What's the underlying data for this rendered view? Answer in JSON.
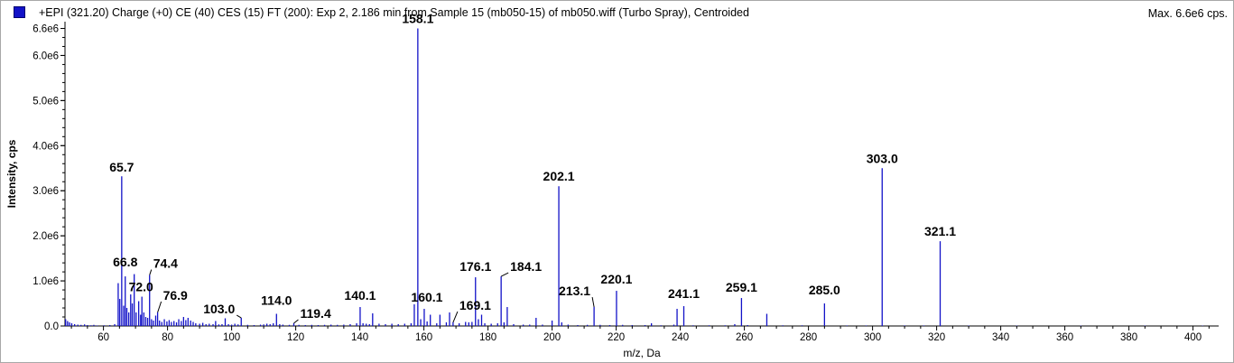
{
  "header": {
    "title": "+EPI (321.20) Charge (+0) CE (40) CES (15) FT (200): Exp 2, 2.186 min from Sample 15 (mb050-15) of mb050.wiff (Turbo Spray), Centroided",
    "max": "Max. 6.6e6 cps.",
    "series_color": "#1212c8"
  },
  "chart_data": {
    "type": "bar",
    "xlabel": "m/z, Da",
    "ylabel": "Intensity, cps",
    "xlim": [
      48,
      408
    ],
    "ylim": [
      0,
      6750000.0
    ],
    "x_ticks": [
      60,
      80,
      100,
      120,
      140,
      160,
      180,
      200,
      220,
      240,
      260,
      280,
      300,
      320,
      340,
      360,
      380,
      400
    ],
    "y_ticks": [
      {
        "value": 0,
        "label": "0.0"
      },
      {
        "value": 1000000,
        "label": "1.0e6"
      },
      {
        "value": 2000000,
        "label": "2.0e6"
      },
      {
        "value": 3000000,
        "label": "3.0e6"
      },
      {
        "value": 4000000,
        "label": "4.0e6"
      },
      {
        "value": 5000000,
        "label": "5.0e6"
      },
      {
        "value": 6000000,
        "label": "6.0e6"
      },
      {
        "value": 6600000,
        "label": "6.6e6"
      }
    ],
    "color": "#1212c8",
    "peaks": [
      {
        "x": 48.2,
        "y": 150000
      },
      {
        "x": 48.8,
        "y": 110000
      },
      {
        "x": 49.4,
        "y": 80000
      },
      {
        "x": 50.1,
        "y": 60000
      },
      {
        "x": 51.0,
        "y": 40000
      },
      {
        "x": 52.0,
        "y": 30000
      },
      {
        "x": 53.0,
        "y": 25000
      },
      {
        "x": 54.1,
        "y": 35000
      },
      {
        "x": 55.0,
        "y": 20000
      },
      {
        "x": 56.1,
        "y": 15000
      },
      {
        "x": 57.0,
        "y": 25000
      },
      {
        "x": 58.0,
        "y": 12000
      },
      {
        "x": 60.2,
        "y": 15000
      },
      {
        "x": 62.0,
        "y": 20000
      },
      {
        "x": 63.5,
        "y": 40000
      },
      {
        "x": 64.6,
        "y": 950000
      },
      {
        "x": 65.1,
        "y": 600000
      },
      {
        "x": 65.7,
        "y": 3320000
      },
      {
        "x": 66.3,
        "y": 450000
      },
      {
        "x": 66.8,
        "y": 1100000
      },
      {
        "x": 67.3,
        "y": 400000
      },
      {
        "x": 67.9,
        "y": 300000
      },
      {
        "x": 68.5,
        "y": 700000
      },
      {
        "x": 69.0,
        "y": 500000
      },
      {
        "x": 69.6,
        "y": 1150000
      },
      {
        "x": 70.2,
        "y": 300000
      },
      {
        "x": 71.0,
        "y": 550000
      },
      {
        "x": 71.6,
        "y": 250000
      },
      {
        "x": 72.0,
        "y": 650000
      },
      {
        "x": 72.6,
        "y": 300000
      },
      {
        "x": 73.2,
        "y": 200000
      },
      {
        "x": 73.8,
        "y": 180000
      },
      {
        "x": 74.4,
        "y": 1130000
      },
      {
        "x": 75.0,
        "y": 150000
      },
      {
        "x": 75.6,
        "y": 120000
      },
      {
        "x": 76.3,
        "y": 230000
      },
      {
        "x": 76.9,
        "y": 300000
      },
      {
        "x": 77.5,
        "y": 120000
      },
      {
        "x": 78.2,
        "y": 90000
      },
      {
        "x": 79.0,
        "y": 150000
      },
      {
        "x": 79.8,
        "y": 100000
      },
      {
        "x": 80.5,
        "y": 130000
      },
      {
        "x": 81.2,
        "y": 90000
      },
      {
        "x": 82.0,
        "y": 110000
      },
      {
        "x": 82.8,
        "y": 80000
      },
      {
        "x": 83.5,
        "y": 150000
      },
      {
        "x": 84.3,
        "y": 110000
      },
      {
        "x": 85.0,
        "y": 200000
      },
      {
        "x": 85.7,
        "y": 130000
      },
      {
        "x": 86.4,
        "y": 180000
      },
      {
        "x": 87.2,
        "y": 120000
      },
      {
        "x": 88.0,
        "y": 90000
      },
      {
        "x": 88.8,
        "y": 60000
      },
      {
        "x": 90.0,
        "y": 50000
      },
      {
        "x": 91.0,
        "y": 70000
      },
      {
        "x": 92.0,
        "y": 40000
      },
      {
        "x": 93.0,
        "y": 50000
      },
      {
        "x": 94.2,
        "y": 40000
      },
      {
        "x": 95.0,
        "y": 110000
      },
      {
        "x": 96.0,
        "y": 35000
      },
      {
        "x": 97.0,
        "y": 40000
      },
      {
        "x": 98.0,
        "y": 170000
      },
      {
        "x": 99.0,
        "y": 40000
      },
      {
        "x": 100.0,
        "y": 30000
      },
      {
        "x": 101.0,
        "y": 50000
      },
      {
        "x": 102.0,
        "y": 35000
      },
      {
        "x": 103.0,
        "y": 180000
      },
      {
        "x": 105.0,
        "y": 25000
      },
      {
        "x": 107.0,
        "y": 20000
      },
      {
        "x": 109.0,
        "y": 30000
      },
      {
        "x": 110.0,
        "y": 35000
      },
      {
        "x": 111.0,
        "y": 50000
      },
      {
        "x": 112.0,
        "y": 40000
      },
      {
        "x": 113.0,
        "y": 60000
      },
      {
        "x": 114.0,
        "y": 270000
      },
      {
        "x": 115.0,
        "y": 40000
      },
      {
        "x": 116.0,
        "y": 30000
      },
      {
        "x": 118.0,
        "y": 25000
      },
      {
        "x": 119.4,
        "y": 60000
      },
      {
        "x": 121.0,
        "y": 25000
      },
      {
        "x": 123.0,
        "y": 20000
      },
      {
        "x": 125.0,
        "y": 25000
      },
      {
        "x": 127.0,
        "y": 20000
      },
      {
        "x": 129.0,
        "y": 25000
      },
      {
        "x": 131.0,
        "y": 30000
      },
      {
        "x": 133.0,
        "y": 25000
      },
      {
        "x": 135.0,
        "y": 30000
      },
      {
        "x": 137.0,
        "y": 40000
      },
      {
        "x": 139.0,
        "y": 60000
      },
      {
        "x": 140.1,
        "y": 420000
      },
      {
        "x": 141.0,
        "y": 60000
      },
      {
        "x": 142.0,
        "y": 50000
      },
      {
        "x": 143.0,
        "y": 40000
      },
      {
        "x": 144.0,
        "y": 280000
      },
      {
        "x": 146.0,
        "y": 50000
      },
      {
        "x": 148.0,
        "y": 40000
      },
      {
        "x": 150.0,
        "y": 50000
      },
      {
        "x": 152.0,
        "y": 40000
      },
      {
        "x": 154.0,
        "y": 50000
      },
      {
        "x": 156.0,
        "y": 60000
      },
      {
        "x": 157.0,
        "y": 480000
      },
      {
        "x": 158.1,
        "y": 6600000
      },
      {
        "x": 159.0,
        "y": 150000
      },
      {
        "x": 160.1,
        "y": 380000
      },
      {
        "x": 161.0,
        "y": 100000
      },
      {
        "x": 162.0,
        "y": 250000
      },
      {
        "x": 164.0,
        "y": 60000
      },
      {
        "x": 165.0,
        "y": 250000
      },
      {
        "x": 167.0,
        "y": 80000
      },
      {
        "x": 168.0,
        "y": 300000
      },
      {
        "x": 169.1,
        "y": 80000
      },
      {
        "x": 171.0,
        "y": 60000
      },
      {
        "x": 173.0,
        "y": 90000
      },
      {
        "x": 174.0,
        "y": 80000
      },
      {
        "x": 175.0,
        "y": 90000
      },
      {
        "x": 176.1,
        "y": 1080000
      },
      {
        "x": 177.0,
        "y": 150000
      },
      {
        "x": 178.0,
        "y": 250000
      },
      {
        "x": 179.0,
        "y": 60000
      },
      {
        "x": 181.0,
        "y": 50000
      },
      {
        "x": 183.0,
        "y": 60000
      },
      {
        "x": 184.1,
        "y": 1100000
      },
      {
        "x": 185.0,
        "y": 80000
      },
      {
        "x": 186.0,
        "y": 420000
      },
      {
        "x": 188.0,
        "y": 40000
      },
      {
        "x": 191.0,
        "y": 30000
      },
      {
        "x": 193.0,
        "y": 30000
      },
      {
        "x": 195.0,
        "y": 180000
      },
      {
        "x": 197.0,
        "y": 30000
      },
      {
        "x": 200.0,
        "y": 120000
      },
      {
        "x": 202.1,
        "y": 3100000
      },
      {
        "x": 203.0,
        "y": 80000
      },
      {
        "x": 205.0,
        "y": 30000
      },
      {
        "x": 208.0,
        "y": 20000
      },
      {
        "x": 211.0,
        "y": 25000
      },
      {
        "x": 213.1,
        "y": 420000
      },
      {
        "x": 215.0,
        "y": 25000
      },
      {
        "x": 218.0,
        "y": 20000
      },
      {
        "x": 220.1,
        "y": 780000
      },
      {
        "x": 222.0,
        "y": 25000
      },
      {
        "x": 225.0,
        "y": 20000
      },
      {
        "x": 229.0,
        "y": 20000
      },
      {
        "x": 231.0,
        "y": 60000
      },
      {
        "x": 234.0,
        "y": 15000
      },
      {
        "x": 238.0,
        "y": 30000
      },
      {
        "x": 239.0,
        "y": 380000
      },
      {
        "x": 241.1,
        "y": 440000
      },
      {
        "x": 244.0,
        "y": 15000
      },
      {
        "x": 249.0,
        "y": 15000
      },
      {
        "x": 254.0,
        "y": 15000
      },
      {
        "x": 257.0,
        "y": 40000
      },
      {
        "x": 259.1,
        "y": 620000
      },
      {
        "x": 261.0,
        "y": 20000
      },
      {
        "x": 267.0,
        "y": 270000
      },
      {
        "x": 272.0,
        "y": 15000
      },
      {
        "x": 278.0,
        "y": 15000
      },
      {
        "x": 285.0,
        "y": 500000
      },
      {
        "x": 292.0,
        "y": 12000
      },
      {
        "x": 298.0,
        "y": 12000
      },
      {
        "x": 303.0,
        "y": 3500000
      },
      {
        "x": 310.0,
        "y": 12000
      },
      {
        "x": 316.0,
        "y": 12000
      },
      {
        "x": 321.1,
        "y": 1880000
      },
      {
        "x": 330.0,
        "y": 10000
      },
      {
        "x": 345.0,
        "y": 8000
      },
      {
        "x": 365.0,
        "y": 8000
      },
      {
        "x": 385.0,
        "y": 8000
      },
      {
        "x": 403.0,
        "y": 8000
      }
    ],
    "annotations": [
      {
        "text": "158.1",
        "x": 158.1,
        "y": 6600000,
        "dx": 0,
        "dy": -6,
        "leader": false
      },
      {
        "text": "65.7",
        "x": 65.7,
        "y": 3320000,
        "dx": 0,
        "dy": -5,
        "leader": false
      },
      {
        "text": "202.1",
        "x": 202.1,
        "y": 3100000,
        "dx": 0,
        "dy": -6,
        "leader": false
      },
      {
        "text": "303.0",
        "x": 303.0,
        "y": 3500000,
        "dx": 0,
        "dy": -6,
        "leader": false
      },
      {
        "text": "321.1",
        "x": 321.1,
        "y": 1880000,
        "dx": 0,
        "dy": -6,
        "leader": false
      },
      {
        "text": "66.8",
        "x": 66.8,
        "y": 1100000,
        "dx": 0,
        "dy": -11,
        "leader": false
      },
      {
        "text": "74.4",
        "x": 74.4,
        "y": 1130000,
        "dx": 8,
        "dy": -8,
        "leader": true
      },
      {
        "text": "72.0",
        "x": 72.0,
        "y": 650000,
        "dx": -1,
        "dy": -6,
        "leader": false
      },
      {
        "text": "76.9",
        "x": 76.9,
        "y": 300000,
        "dx": 10,
        "dy": -14,
        "leader": true
      },
      {
        "text": "103.0",
        "x": 103.0,
        "y": 180000,
        "dx": -11,
        "dy": -5,
        "leader": true
      },
      {
        "text": "114.0",
        "x": 114.0,
        "y": 270000,
        "dx": 0,
        "dy": -10,
        "leader": false
      },
      {
        "text": "119.4",
        "x": 119.4,
        "y": 60000,
        "dx": 11,
        "dy": -6,
        "leader": true
      },
      {
        "text": "140.1",
        "x": 140.1,
        "y": 420000,
        "dx": 0,
        "dy": -8,
        "leader": false
      },
      {
        "text": "160.1",
        "x": 160.1,
        "y": 380000,
        "dx": 3,
        "dy": -8,
        "leader": false
      },
      {
        "text": "176.1",
        "x": 176.1,
        "y": 1080000,
        "dx": 0,
        "dy": -7,
        "leader": false
      },
      {
        "text": "184.1",
        "x": 184.1,
        "y": 1100000,
        "dx": 14,
        "dy": -6,
        "leader": true
      },
      {
        "text": "169.1",
        "x": 169.1,
        "y": 80000,
        "dx": 11,
        "dy": -14,
        "leader": true
      },
      {
        "text": "213.1",
        "x": 213.1,
        "y": 420000,
        "dx": -8,
        "dy": -13,
        "leader": true
      },
      {
        "text": "220.1",
        "x": 220.1,
        "y": 780000,
        "dx": 0,
        "dy": -8,
        "leader": false
      },
      {
        "text": "241.1",
        "x": 241.1,
        "y": 440000,
        "dx": 0,
        "dy": -9,
        "leader": false
      },
      {
        "text": "259.1",
        "x": 259.1,
        "y": 620000,
        "dx": 0,
        "dy": -7,
        "leader": false
      },
      {
        "text": "285.0",
        "x": 285.0,
        "y": 500000,
        "dx": 0,
        "dy": -10,
        "leader": false
      }
    ]
  }
}
